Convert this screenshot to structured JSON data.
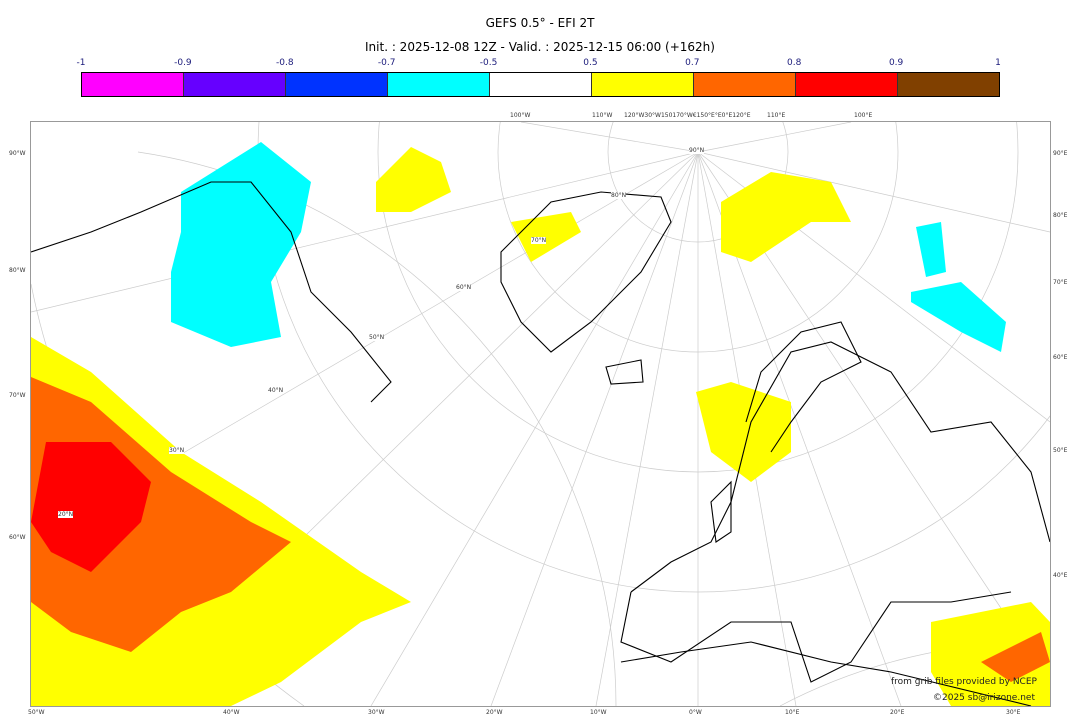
{
  "title": "GEFS 0.5° - EFI 2T",
  "subtitle": "Init. : 2025-12-08 12Z - Valid. : 2025-12-15 06:00 (+162h)",
  "colorbar": {
    "ticks": [
      "-1",
      "-0.9",
      "-0.8",
      "-0.7",
      "-0.5",
      "0.5",
      "0.7",
      "0.8",
      "0.9",
      "1"
    ],
    "colors": [
      "#ff00ff",
      "#6600ff",
      "#0033ff",
      "#00ffff",
      "#ffffff",
      "#ffff00",
      "#ff6600",
      "#ff0000",
      "#804000"
    ]
  },
  "axes": {
    "left": [
      "90°W",
      "80°W",
      "70°W",
      "60°W"
    ],
    "right": [
      "90°E",
      "80°E",
      "70°E",
      "60°E",
      "50°E",
      "40°E"
    ],
    "bottom": [
      "50°W",
      "40°W",
      "30°W",
      "20°W",
      "10°W",
      "0°W",
      "10°E",
      "20°E",
      "30°E"
    ],
    "top": [
      "100°W",
      "110°W",
      "120°W30°W150170°W€150°E°E0°E120°E",
      "110°E",
      "100°E"
    ],
    "lat_labels": [
      "90°N",
      "80°N",
      "70°N",
      "60°N",
      "50°N",
      "40°N",
      "30°N",
      "20°N"
    ]
  },
  "credits": {
    "line1": "from grib files provided by NCEP",
    "line2": "©2025 sb@irizone.net"
  }
}
